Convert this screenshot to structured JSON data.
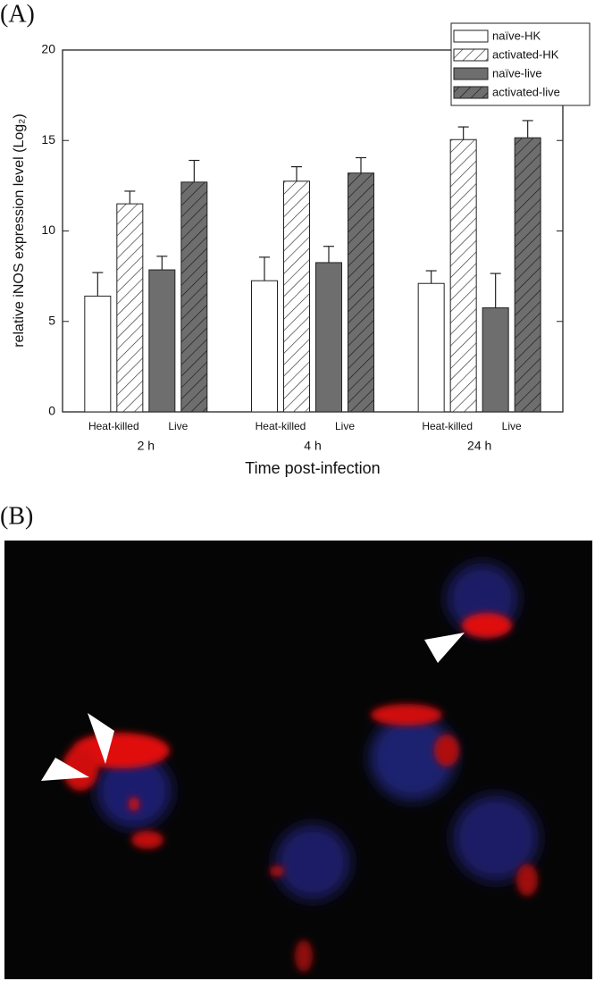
{
  "panel_a": {
    "label": "(A)"
  },
  "panel_b": {
    "label": "(B)"
  },
  "chart_data": {
    "type": "bar",
    "y_label": "relative iNOS expression level (Log₂)",
    "x_label": "Time post-infection",
    "categories": [
      "2 h",
      "4 h",
      "24 h"
    ],
    "group_labels": [
      "Heat-killed",
      "Live"
    ],
    "series": [
      {
        "name": "naïve-HK",
        "color": "#ffffff",
        "hatch": false,
        "values": [
          6.4,
          7.25,
          7.1
        ],
        "errors": [
          1.3,
          1.3,
          0.7
        ]
      },
      {
        "name": "activated-HK",
        "color": "#ffffff",
        "hatch": true,
        "values": [
          11.5,
          12.75,
          15.05
        ],
        "errors": [
          0.7,
          0.8,
          0.7
        ]
      },
      {
        "name": "naïve-live",
        "color": "#6e6e6e",
        "hatch": false,
        "values": [
          7.85,
          8.25,
          5.75
        ],
        "errors": [
          0.75,
          0.9,
          1.9
        ]
      },
      {
        "name": "activated-live",
        "color": "#6e6e6e",
        "hatch": true,
        "values": [
          12.7,
          13.2,
          15.15
        ],
        "errors": [
          1.2,
          0.85,
          0.95
        ]
      }
    ],
    "ylim": [
      0,
      20
    ],
    "yticks": [
      0,
      5,
      10,
      15,
      20
    ],
    "legend": "upper-right"
  }
}
